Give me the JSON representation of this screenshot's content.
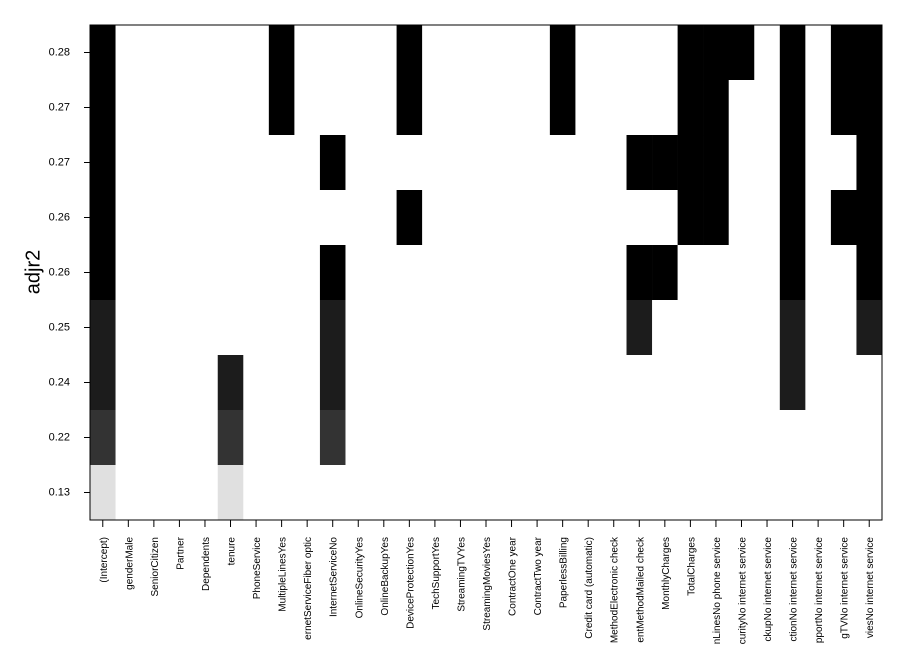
{
  "chart_data": {
    "type": "subset-matrix",
    "y_label": "adjr2",
    "variables": [
      "(Intercept)",
      "genderMale",
      "SeniorCitizen",
      "Partner",
      "Dependents",
      "tenure",
      "PhoneService",
      "MultipleLinesYes",
      "ernetServiceFiber optic",
      "InternetServiceNo",
      "OnlineSecurityYes",
      "OnlineBackupYes",
      "DeviceProtectionYes",
      "TechSupportYes",
      "StreamingTVYes",
      "StreamingMoviesYes",
      "ContractOne year",
      "ContractTwo year",
      "PaperlessBilling",
      "Credit card (automatic)",
      "MethodElectronic check",
      "entMethodMailed check",
      "MonthlyCharges",
      "TotalCharges",
      "nLinesNo phone service",
      "curityNo internet service",
      "ckupNo internet service",
      "ctionNo internet service",
      "pportNo internet service",
      "gTVNo internet service",
      "viesNo internet service"
    ],
    "rows": [
      {
        "value": 0.28,
        "color": "#000000",
        "included": [
          1,
          0,
          0,
          0,
          0,
          0,
          0,
          1,
          0,
          0,
          0,
          0,
          1,
          0,
          0,
          0,
          0,
          0,
          1,
          0,
          0,
          0,
          0,
          1,
          1,
          1,
          0,
          1,
          0,
          1,
          1
        ]
      },
      {
        "value": 0.27,
        "color": "#000000",
        "included": [
          1,
          0,
          0,
          0,
          0,
          0,
          0,
          1,
          0,
          0,
          0,
          0,
          1,
          0,
          0,
          0,
          0,
          0,
          1,
          0,
          0,
          0,
          0,
          1,
          1,
          0,
          0,
          1,
          0,
          1,
          1
        ]
      },
      {
        "value": 0.27,
        "color": "#000000",
        "included": [
          1,
          0,
          0,
          0,
          0,
          0,
          0,
          0,
          0,
          1,
          0,
          0,
          0,
          0,
          0,
          0,
          0,
          0,
          0,
          0,
          0,
          1,
          1,
          1,
          1,
          0,
          0,
          1,
          0,
          0,
          1
        ]
      },
      {
        "value": 0.26,
        "color": "#000000",
        "included": [
          1,
          0,
          0,
          0,
          0,
          0,
          0,
          0,
          0,
          0,
          0,
          0,
          1,
          0,
          0,
          0,
          0,
          0,
          0,
          0,
          0,
          0,
          0,
          1,
          1,
          0,
          0,
          1,
          0,
          1,
          1
        ]
      },
      {
        "value": 0.26,
        "color": "#000000",
        "included": [
          1,
          0,
          0,
          0,
          0,
          0,
          0,
          0,
          0,
          1,
          0,
          0,
          0,
          0,
          0,
          0,
          0,
          0,
          0,
          0,
          0,
          1,
          1,
          0,
          0,
          0,
          0,
          1,
          0,
          0,
          1
        ]
      },
      {
        "value": 0.25,
        "color": "#1c1c1c",
        "included": [
          1,
          0,
          0,
          0,
          0,
          0,
          0,
          0,
          0,
          1,
          0,
          0,
          0,
          0,
          0,
          0,
          0,
          0,
          0,
          0,
          0,
          1,
          0,
          0,
          0,
          0,
          0,
          1,
          0,
          0,
          1
        ]
      },
      {
        "value": 0.24,
        "color": "#1c1c1c",
        "included": [
          1,
          0,
          0,
          0,
          0,
          1,
          0,
          0,
          0,
          1,
          0,
          0,
          0,
          0,
          0,
          0,
          0,
          0,
          0,
          0,
          0,
          0,
          0,
          0,
          0,
          0,
          0,
          1,
          0,
          0,
          0
        ]
      },
      {
        "value": 0.22,
        "color": "#333333",
        "included": [
          1,
          0,
          0,
          0,
          0,
          1,
          0,
          0,
          0,
          1,
          0,
          0,
          0,
          0,
          0,
          0,
          0,
          0,
          0,
          0,
          0,
          0,
          0,
          0,
          0,
          0,
          0,
          0,
          0,
          0,
          0
        ]
      },
      {
        "value": 0.13,
        "color": "#e0e0e0",
        "included": [
          1,
          0,
          0,
          0,
          0,
          1,
          0,
          0,
          0,
          0,
          0,
          0,
          0,
          0,
          0,
          0,
          0,
          0,
          0,
          0,
          0,
          0,
          0,
          0,
          0,
          0,
          0,
          0,
          0,
          0,
          0
        ]
      }
    ]
  }
}
